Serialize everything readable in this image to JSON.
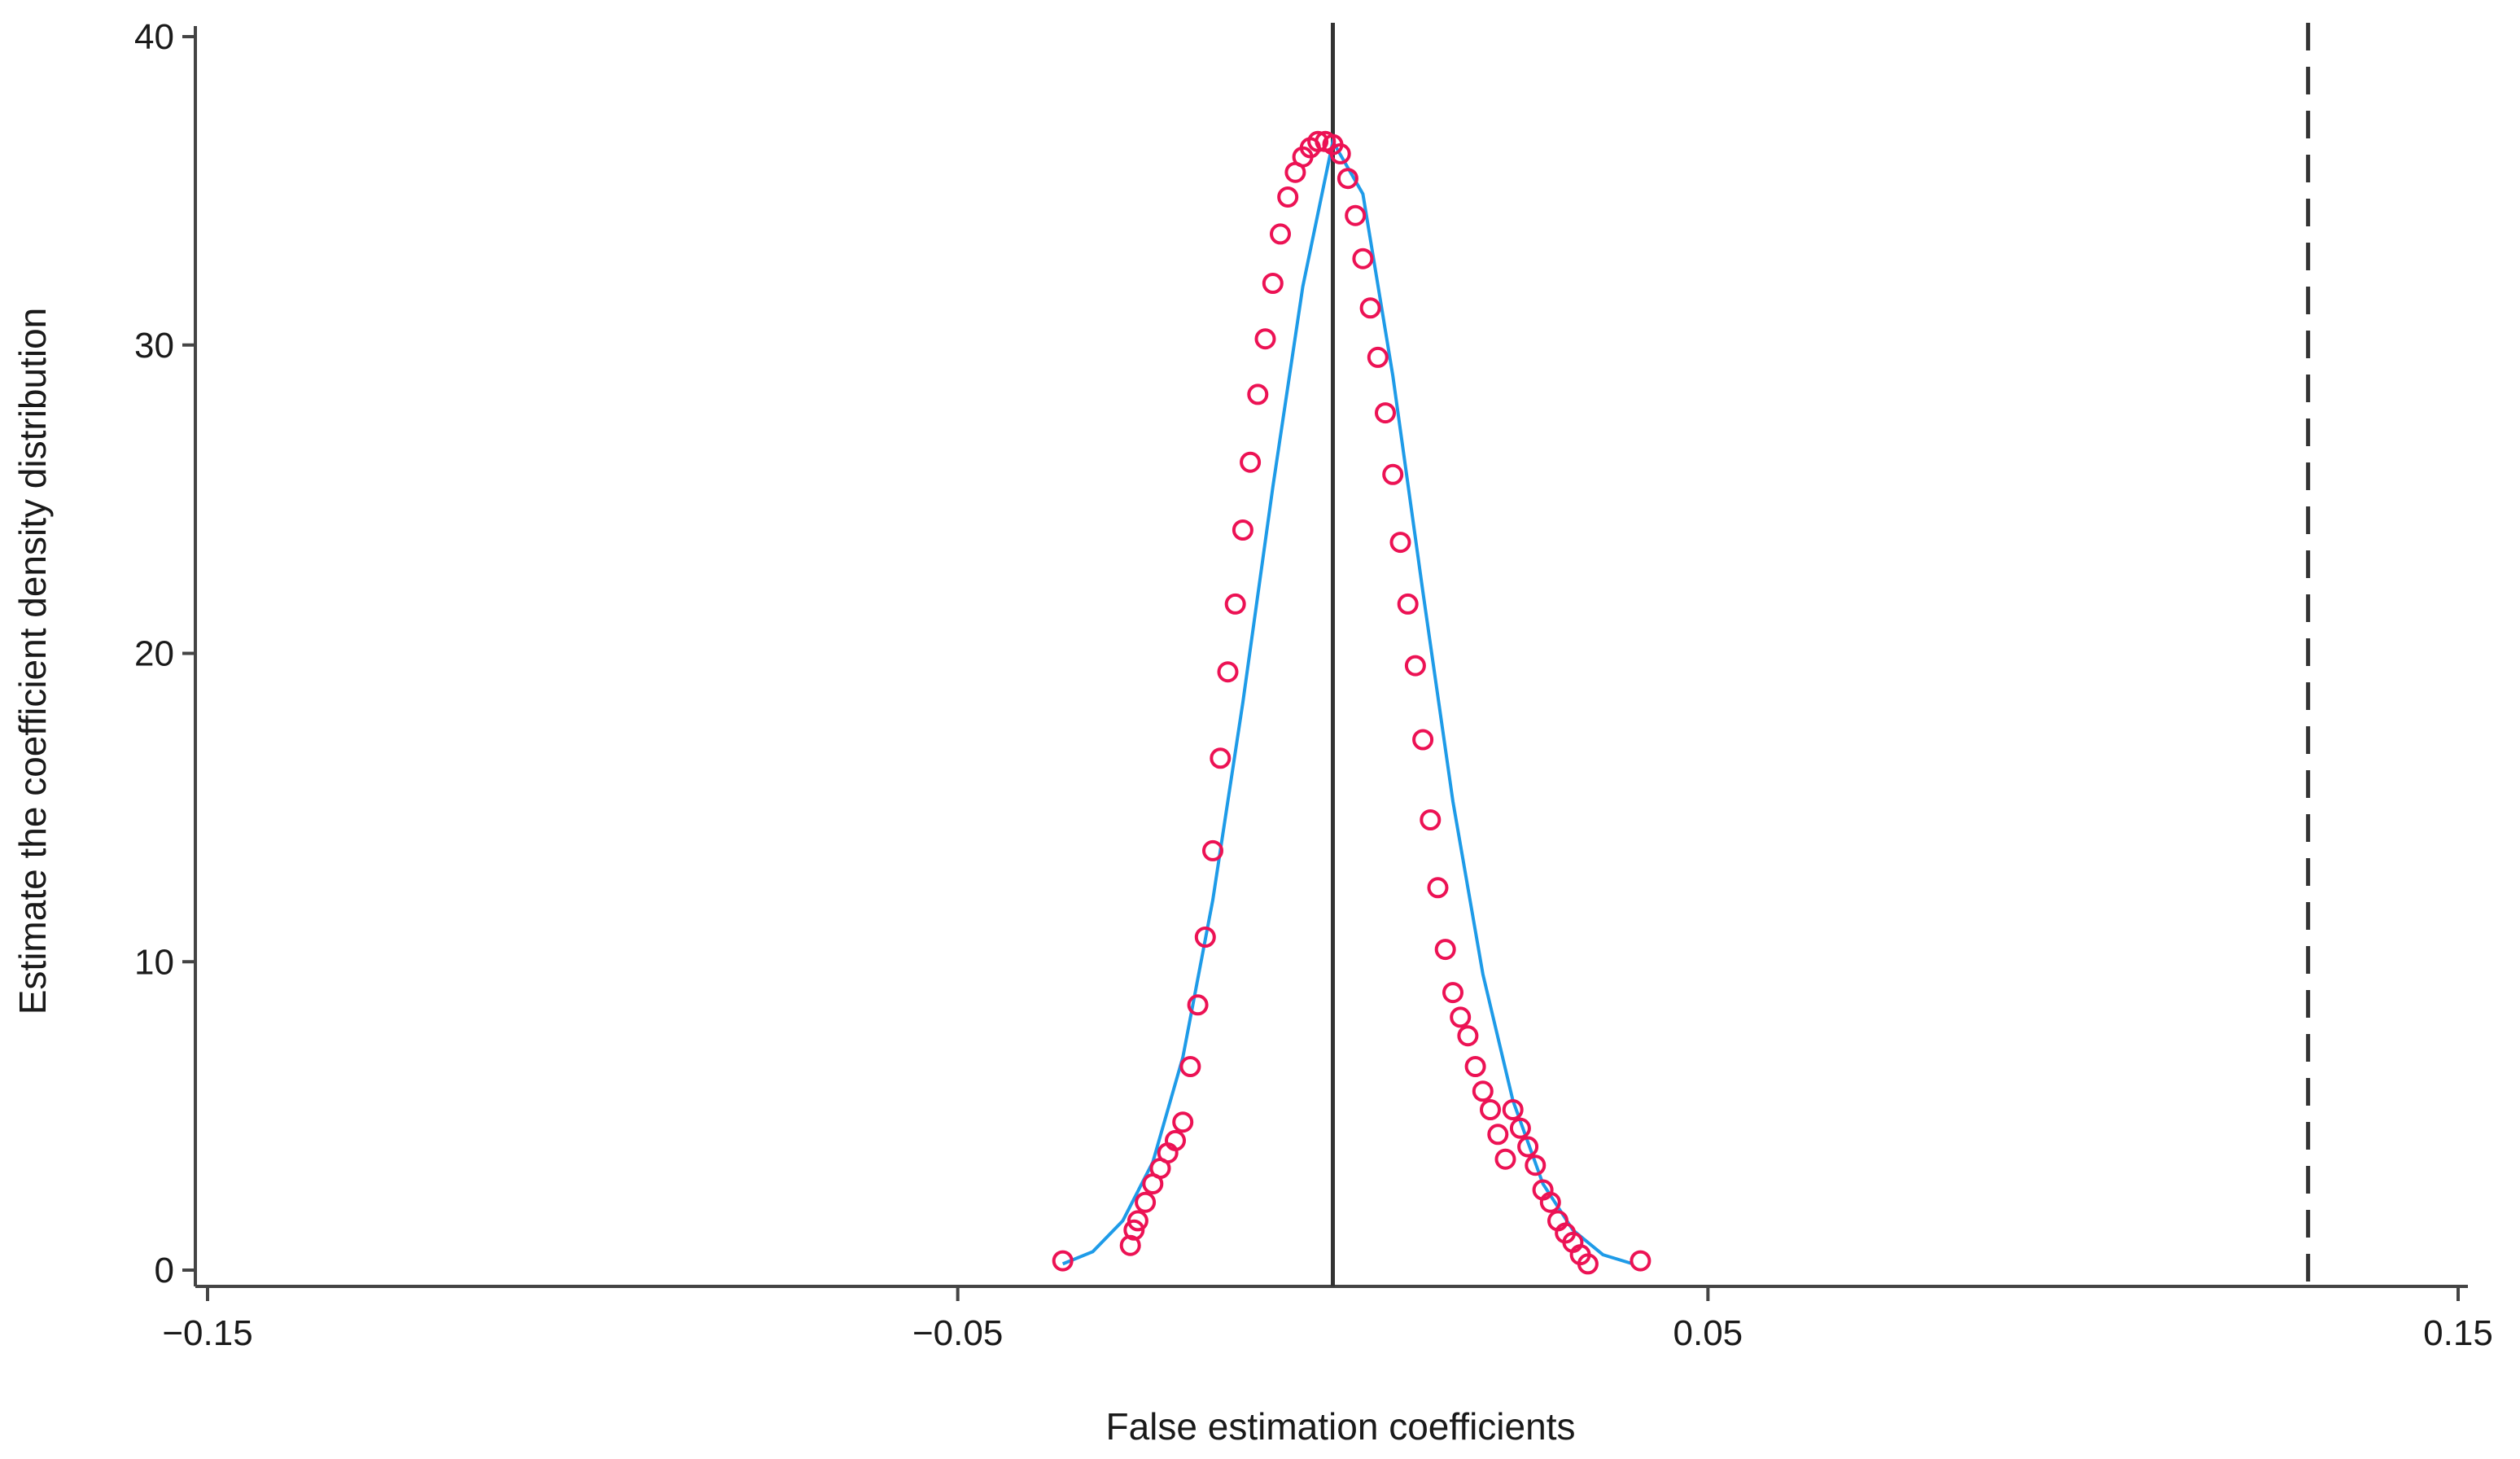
{
  "chart_data": {
    "type": "scatter",
    "title": "",
    "xlabel": "False estimation coefficients",
    "ylabel": "Estimate the coefficient density distribution",
    "xlim": [
      -0.15,
      0.15
    ],
    "ylim": [
      0,
      40
    ],
    "x_ticks": [
      -0.15,
      -0.05,
      0.05,
      0.15
    ],
    "x_tick_labels": [
      "−0.15",
      "−0.05",
      "0.05",
      "0.15"
    ],
    "y_ticks": [
      0,
      10,
      20,
      30,
      40
    ],
    "y_tick_labels": [
      "0",
      "10",
      "20",
      "30",
      "40"
    ],
    "grid": false,
    "legend": "none",
    "reference_lines": [
      {
        "x": 0.0,
        "style": "solid",
        "color": "#333333"
      },
      {
        "x": 0.13,
        "style": "dashed",
        "color": "#333333"
      }
    ],
    "series": [
      {
        "kind": "fitted-density-curve",
        "color": "#1e9be8",
        "x": [
          -0.036,
          -0.032,
          -0.028,
          -0.024,
          -0.02,
          -0.016,
          -0.012,
          -0.008,
          -0.004,
          0.0,
          0.004,
          0.008,
          0.012,
          0.016,
          0.02,
          0.024,
          0.028,
          0.032,
          0.036,
          0.04
        ],
        "y": [
          0.2,
          0.6,
          1.6,
          3.5,
          6.9,
          12.0,
          18.4,
          25.4,
          31.9,
          36.6,
          34.9,
          29.0,
          22.0,
          15.2,
          9.6,
          5.5,
          2.8,
          1.3,
          0.5,
          0.2
        ]
      },
      {
        "kind": "density-points",
        "marker": "hollow-circle",
        "color": "#ec1254",
        "x": [
          -0.036,
          -0.027,
          -0.0265,
          -0.026,
          -0.025,
          -0.024,
          -0.023,
          -0.022,
          -0.021,
          -0.02,
          -0.019,
          -0.018,
          -0.017,
          -0.016,
          -0.015,
          -0.014,
          -0.013,
          -0.012,
          -0.011,
          -0.01,
          -0.009,
          -0.008,
          -0.007,
          -0.006,
          -0.005,
          -0.004,
          -0.003,
          -0.002,
          -0.001,
          0.0,
          0.001,
          0.002,
          0.003,
          0.004,
          0.005,
          0.006,
          0.007,
          0.008,
          0.009,
          0.01,
          0.011,
          0.012,
          0.013,
          0.014,
          0.015,
          0.016,
          0.017,
          0.018,
          0.019,
          0.02,
          0.021,
          0.022,
          0.023,
          0.024,
          0.025,
          0.026,
          0.027,
          0.028,
          0.029,
          0.03,
          0.031,
          0.032,
          0.033,
          0.034,
          0.041
        ],
        "y": [
          0.3,
          0.8,
          1.3,
          1.6,
          2.2,
          2.8,
          3.3,
          3.8,
          4.2,
          4.8,
          6.6,
          8.6,
          10.8,
          13.6,
          16.6,
          19.4,
          21.6,
          24.0,
          26.2,
          28.4,
          30.2,
          32.0,
          33.6,
          34.8,
          35.6,
          36.1,
          36.4,
          36.6,
          36.6,
          36.5,
          36.2,
          35.4,
          34.2,
          32.8,
          31.2,
          29.6,
          27.8,
          25.8,
          23.6,
          21.6,
          19.6,
          17.2,
          14.6,
          12.4,
          10.4,
          9.0,
          8.2,
          7.6,
          6.6,
          5.8,
          5.2,
          4.4,
          3.6,
          5.2,
          4.6,
          4.0,
          3.4,
          2.6,
          2.2,
          1.6,
          1.2,
          0.9,
          0.5,
          0.2,
          0.3
        ]
      }
    ]
  }
}
